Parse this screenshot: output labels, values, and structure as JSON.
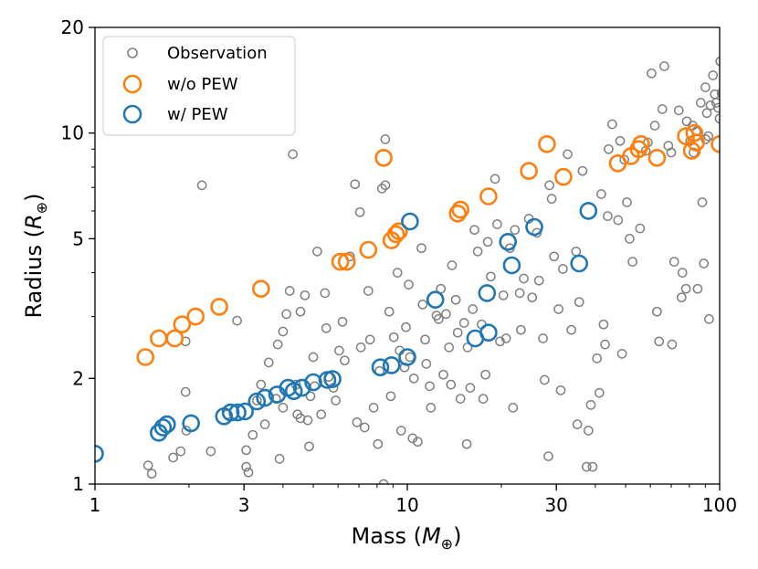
{
  "chart_data": {
    "type": "scatter",
    "x_scale": "log",
    "y_scale": "log",
    "xlim": [
      1,
      100
    ],
    "ylim": [
      1,
      20
    ],
    "xlabel": "Mass (M⊕)",
    "ylabel": "Radius (R⊕)",
    "xlabel_main": "Mass (",
    "xlabel_sym": "M",
    "xlabel_sub": "⊕",
    "xlabel_close": ")",
    "ylabel_main": "Radius (",
    "ylabel_sym": "R",
    "ylabel_sub": "⊕",
    "ylabel_close": ")",
    "x_ticks": [
      {
        "value": 1,
        "label": "1"
      },
      {
        "value": 3,
        "label": "3"
      },
      {
        "value": 10,
        "label": "10"
      },
      {
        "value": 30,
        "label": "30"
      },
      {
        "value": 100,
        "label": "100"
      }
    ],
    "y_ticks": [
      {
        "value": 1,
        "label": "1"
      },
      {
        "value": 2,
        "label": "2"
      },
      {
        "value": 5,
        "label": "5"
      },
      {
        "value": 10,
        "label": "10"
      },
      {
        "value": 20,
        "label": "20"
      }
    ],
    "legend_position": "top-left",
    "series": [
      {
        "name": "Observation",
        "color": "#808080",
        "marker": "small-open-circle",
        "points": [
          [
            1.48,
            1.13
          ],
          [
            1.52,
            1.07
          ],
          [
            1.78,
            1.19
          ],
          [
            1.88,
            1.24
          ],
          [
            1.96,
            1.42
          ],
          [
            1.95,
            2.55
          ],
          [
            1.95,
            1.83
          ],
          [
            2.2,
            7.1
          ],
          [
            2.35,
            1.24
          ],
          [
            2.65,
            1.58
          ],
          [
            2.85,
            2.92
          ],
          [
            3.05,
            1.25
          ],
          [
            3.05,
            1.12
          ],
          [
            3.1,
            1.08
          ],
          [
            3.2,
            1.38
          ],
          [
            3.3,
            1.73
          ],
          [
            3.4,
            1.92
          ],
          [
            3.5,
            1.48
          ],
          [
            3.6,
            2.22
          ],
          [
            3.8,
            1.75
          ],
          [
            3.9,
            1.18
          ],
          [
            3.85,
            2.5
          ],
          [
            4.0,
            2.72
          ],
          [
            4.0,
            1.65
          ],
          [
            4.1,
            3.05
          ],
          [
            4.2,
            3.55
          ],
          [
            4.3,
            8.7
          ],
          [
            4.4,
            1.92
          ],
          [
            4.45,
            1.58
          ],
          [
            4.55,
            1.54
          ],
          [
            4.55,
            3.1
          ],
          [
            4.7,
            3.45
          ],
          [
            4.8,
            1.52
          ],
          [
            4.85,
            1.28
          ],
          [
            4.9,
            1.78
          ],
          [
            5.0,
            2.3
          ],
          [
            5.05,
            1.9
          ],
          [
            5.15,
            4.6
          ],
          [
            5.3,
            1.58
          ],
          [
            5.45,
            3.5
          ],
          [
            5.5,
            2.78
          ],
          [
            5.6,
            2.02
          ],
          [
            5.8,
            1.88
          ],
          [
            5.9,
            1.73
          ],
          [
            6.05,
            2.4
          ],
          [
            6.2,
            2.9
          ],
          [
            6.3,
            2.25
          ],
          [
            6.55,
            4.45
          ],
          [
            6.8,
            7.15
          ],
          [
            6.9,
            1.5
          ],
          [
            7.05,
            5.95
          ],
          [
            7.1,
            2.45
          ],
          [
            7.3,
            1.45
          ],
          [
            7.5,
            3.55
          ],
          [
            7.6,
            2.58
          ],
          [
            7.8,
            1.65
          ],
          [
            8.05,
            1.3
          ],
          [
            8.15,
            2.1
          ],
          [
            8.3,
            6.95
          ],
          [
            8.5,
            7.1
          ],
          [
            8.5,
            9.6
          ],
          [
            8.75,
            3.1
          ],
          [
            8.4,
            1.0
          ],
          [
            8.85,
            1.78
          ],
          [
            9.05,
            2.62
          ],
          [
            9.3,
            4.0
          ],
          [
            9.45,
            2.4
          ],
          [
            9.55,
            1.42
          ],
          [
            9.8,
            2.15
          ],
          [
            9.9,
            2.8
          ],
          [
            10.1,
            3.7
          ],
          [
            10.2,
            2.3
          ],
          [
            10.4,
            1.35
          ],
          [
            10.5,
            2.0
          ],
          [
            10.8,
            1.32
          ],
          [
            11.1,
            4.7
          ],
          [
            11.2,
            3.25
          ],
          [
            11.4,
            2.58
          ],
          [
            11.5,
            2.2
          ],
          [
            11.8,
            1.9
          ],
          [
            11.9,
            1.65
          ],
          [
            12.4,
            3.02
          ],
          [
            12.6,
            2.95
          ],
          [
            12.8,
            3.6
          ],
          [
            13.05,
            2.05
          ],
          [
            13.3,
            3.05
          ],
          [
            13.6,
            2.45
          ],
          [
            13.8,
            1.92
          ],
          [
            13.9,
            4.2
          ],
          [
            14.3,
            3.35
          ],
          [
            14.5,
            2.7
          ],
          [
            14.8,
            1.75
          ],
          [
            15.2,
            2.88
          ],
          [
            15.5,
            1.3
          ],
          [
            15.6,
            2.45
          ],
          [
            15.9,
            1.88
          ],
          [
            16.2,
            3.15
          ],
          [
            16.4,
            5.3
          ],
          [
            16.8,
            4.6
          ],
          [
            17.3,
            2.85
          ],
          [
            17.5,
            1.75
          ],
          [
            17.8,
            2.05
          ],
          [
            18.1,
            4.9
          ],
          [
            18.5,
            3.9
          ],
          [
            19.1,
            7.4
          ],
          [
            19.4,
            5.5
          ],
          [
            19.8,
            2.55
          ],
          [
            20.3,
            3.45
          ],
          [
            20.7,
            2.6
          ],
          [
            21.3,
            4.7
          ],
          [
            21.8,
            1.65
          ],
          [
            22.1,
            5.3
          ],
          [
            22.9,
            3.5
          ],
          [
            23.1,
            2.75
          ],
          [
            23.6,
            3.85
          ],
          [
            24.5,
            5.7
          ],
          [
            25.1,
            3.4
          ],
          [
            26.0,
            5.2
          ],
          [
            26.4,
            3.8
          ],
          [
            27.2,
            2.6
          ],
          [
            27.5,
            1.98
          ],
          [
            28.3,
            1.2
          ],
          [
            28.5,
            7.1
          ],
          [
            29.0,
            6.5
          ],
          [
            29.5,
            4.45
          ],
          [
            30.5,
            3.15
          ],
          [
            31.0,
            1.85
          ],
          [
            31.5,
            4.1
          ],
          [
            32.6,
            8.7
          ],
          [
            33.5,
            2.75
          ],
          [
            34.7,
            4.6
          ],
          [
            35.0,
            1.48
          ],
          [
            35.5,
            3.3
          ],
          [
            36.4,
            7.8
          ],
          [
            37.5,
            1.12
          ],
          [
            38.0,
            1.42
          ],
          [
            38.7,
            1.68
          ],
          [
            39.2,
            1.12
          ],
          [
            40.5,
            2.28
          ],
          [
            41.2,
            1.82
          ],
          [
            41.8,
            6.7
          ],
          [
            42.5,
            2.85
          ],
          [
            43.0,
            2.5
          ],
          [
            43.8,
            5.8
          ],
          [
            44.1,
            9.0
          ],
          [
            45.3,
            10.6
          ],
          [
            47.3,
            5.65
          ],
          [
            48.0,
            9.5
          ],
          [
            48.7,
            2.35
          ],
          [
            49.5,
            8.4
          ],
          [
            50.5,
            6.35
          ],
          [
            51.5,
            5.0
          ],
          [
            52.6,
            4.3
          ],
          [
            55.6,
            5.35
          ],
          [
            58.0,
            8.9
          ],
          [
            58.9,
            9.4
          ],
          [
            60.5,
            14.8
          ],
          [
            62.0,
            10.5
          ],
          [
            63.0,
            3.1
          ],
          [
            64.0,
            2.55
          ],
          [
            65.5,
            11.7
          ],
          [
            66.5,
            15.5
          ],
          [
            68.5,
            9.2
          ],
          [
            70.4,
            2.5
          ],
          [
            71.5,
            4.3
          ],
          [
            74.0,
            11.6
          ],
          [
            78.5,
            10.8
          ],
          [
            80.5,
            9.5
          ],
          [
            82.5,
            8.8
          ],
          [
            84.1,
            10.1
          ],
          [
            87.0,
            12.2
          ],
          [
            88.0,
            6.35
          ],
          [
            89.0,
            4.25
          ],
          [
            90.2,
            9.6
          ],
          [
            91.0,
            11.4
          ],
          [
            92.5,
            2.95
          ],
          [
            93.5,
            12.0
          ],
          [
            95.2,
            14.6
          ],
          [
            96.5,
            12.9
          ],
          [
            97.5,
            12.2
          ],
          [
            99.0,
            11.8
          ],
          [
            100.0,
            11.0
          ],
          [
            100.5,
            16.0
          ],
          [
            101.5,
            13.0
          ],
          [
            90.0,
            13.5
          ],
          [
            85.0,
            3.6
          ],
          [
            78.0,
            3.6
          ],
          [
            75.5,
            3.4
          ],
          [
            92.0,
            9.8
          ],
          [
            70.0,
            8.8
          ],
          [
            82.0,
            10.5
          ],
          [
            76.0,
            4.0
          ]
        ]
      },
      {
        "name": "w/o PEW",
        "color": "#ff7f0e",
        "marker": "large-open-circle",
        "points": [
          [
            1.45,
            2.3
          ],
          [
            1.6,
            2.6
          ],
          [
            1.8,
            2.6
          ],
          [
            1.9,
            2.85
          ],
          [
            2.1,
            3.0
          ],
          [
            2.5,
            3.2
          ],
          [
            3.4,
            3.6
          ],
          [
            6.1,
            4.3
          ],
          [
            6.4,
            4.3
          ],
          [
            7.5,
            4.65
          ],
          [
            8.4,
            8.5
          ],
          [
            8.9,
            4.95
          ],
          [
            9.2,
            5.15
          ],
          [
            9.4,
            5.25
          ],
          [
            14.5,
            5.9
          ],
          [
            14.8,
            6.05
          ],
          [
            18.2,
            6.6
          ],
          [
            24.5,
            7.8
          ],
          [
            28.0,
            9.3
          ],
          [
            31.6,
            7.5
          ],
          [
            47.2,
            8.2
          ],
          [
            52.0,
            8.6
          ],
          [
            55.0,
            9.0
          ],
          [
            56.0,
            9.3
          ],
          [
            63.0,
            8.5
          ],
          [
            78.0,
            9.8
          ],
          [
            81.5,
            8.9
          ],
          [
            83.0,
            10.0
          ],
          [
            84.0,
            9.4
          ],
          [
            100.0,
            9.3
          ]
        ]
      },
      {
        "name": "w/ PEW",
        "color": "#1f77b4",
        "marker": "large-open-circle",
        "points": [
          [
            1.0,
            1.22
          ],
          [
            1.6,
            1.4
          ],
          [
            1.65,
            1.45
          ],
          [
            1.7,
            1.48
          ],
          [
            2.03,
            1.49
          ],
          [
            2.59,
            1.56
          ],
          [
            2.72,
            1.6
          ],
          [
            2.86,
            1.6
          ],
          [
            3.02,
            1.61
          ],
          [
            3.3,
            1.72
          ],
          [
            3.5,
            1.76
          ],
          [
            3.83,
            1.8
          ],
          [
            4.15,
            1.88
          ],
          [
            4.33,
            1.84
          ],
          [
            4.6,
            1.88
          ],
          [
            5.0,
            1.95
          ],
          [
            5.55,
            1.98
          ],
          [
            5.76,
            1.99
          ],
          [
            8.2,
            2.15
          ],
          [
            8.9,
            2.18
          ],
          [
            10.0,
            2.3
          ],
          [
            10.2,
            5.6
          ],
          [
            12.3,
            3.35
          ],
          [
            16.5,
            2.6
          ],
          [
            18.0,
            3.5
          ],
          [
            18.2,
            2.7
          ],
          [
            21.0,
            4.9
          ],
          [
            21.6,
            4.2
          ],
          [
            25.5,
            5.4
          ],
          [
            35.5,
            4.25
          ],
          [
            38.0,
            6.0
          ]
        ]
      }
    ]
  }
}
